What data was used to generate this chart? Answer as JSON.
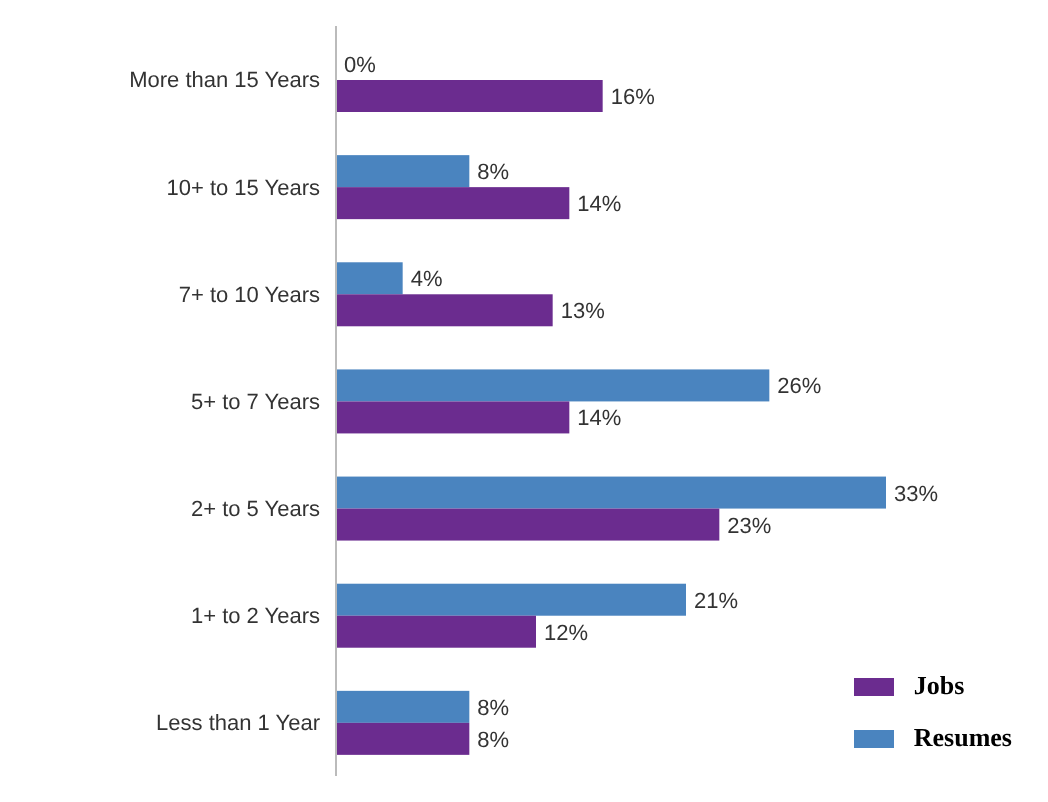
{
  "chart_data": {
    "type": "bar",
    "orientation": "horizontal",
    "categories": [
      "More than 15 Years",
      "10+ to 15 Years",
      "7+ to 10 Years",
      "5+ to 7 Years",
      "2+ to 5 Years",
      "1+ to 2 Years",
      "Less than 1 Year"
    ],
    "series": [
      {
        "name": "Jobs",
        "color": "#6b2c8f",
        "values": [
          16,
          14,
          13,
          14,
          23,
          12,
          8
        ],
        "value_labels": [
          "16%",
          "14%",
          "13%",
          "14%",
          "23%",
          "12%",
          "8%"
        ]
      },
      {
        "name": "Resumes",
        "color": "#4a84bf",
        "values": [
          0,
          8,
          4,
          26,
          33,
          21,
          8
        ],
        "value_labels": [
          "0%",
          "8%",
          "4%",
          "26%",
          "33%",
          "21%",
          "8%"
        ]
      }
    ],
    "legend": "bottom right",
    "grid": false
  }
}
